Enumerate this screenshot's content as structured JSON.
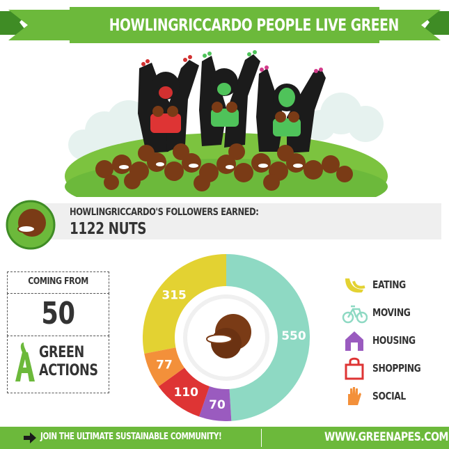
{
  "header": {
    "title": "HOWLINGRICCARDO PEOPLE LIVE GREEN"
  },
  "earnings": {
    "label": "HOWLINGRICCARDO'S FOLLOWERS EARNED:",
    "value": "1122 NUTS"
  },
  "coming_from": {
    "label": "COMING FROM",
    "count": "50",
    "line1": "GREEN",
    "line2": "ACTIONS"
  },
  "chart_data": {
    "type": "pie",
    "categories": [
      "EATING",
      "MOVING",
      "HOUSING",
      "SHOPPING",
      "SOCIAL"
    ],
    "values": [
      315,
      550,
      70,
      110,
      77
    ],
    "colors": [
      "#e3d232",
      "#8ed9c3",
      "#9a5bbf",
      "#de3434",
      "#f3903a"
    ],
    "labels": [
      "315",
      "550",
      "70",
      "110",
      "77"
    ],
    "style": "donut"
  },
  "legend": [
    {
      "label": "EATING",
      "icon": "banana-icon",
      "color": "#e3d232"
    },
    {
      "label": "MOVING",
      "icon": "bicycle-icon",
      "color": "#8ed9c3"
    },
    {
      "label": "HOUSING",
      "icon": "house-icon",
      "color": "#9a5bbf"
    },
    {
      "label": "SHOPPING",
      "icon": "shopping-bag-icon",
      "color": "#de3434"
    },
    {
      "label": "SOCIAL",
      "icon": "hand-icon",
      "color": "#f3903a"
    }
  ],
  "footer": {
    "left_text": "JOIN THE ULTIMATE SUSTAINABLE COMMUNITY!",
    "right_text": "WWW.GREENAPES.COM"
  },
  "colors": {
    "brand_green": "#6cb93b",
    "dark_green": "#3f8c25",
    "gorilla": "#1b1b1b",
    "coconut": "#7a3b16"
  }
}
